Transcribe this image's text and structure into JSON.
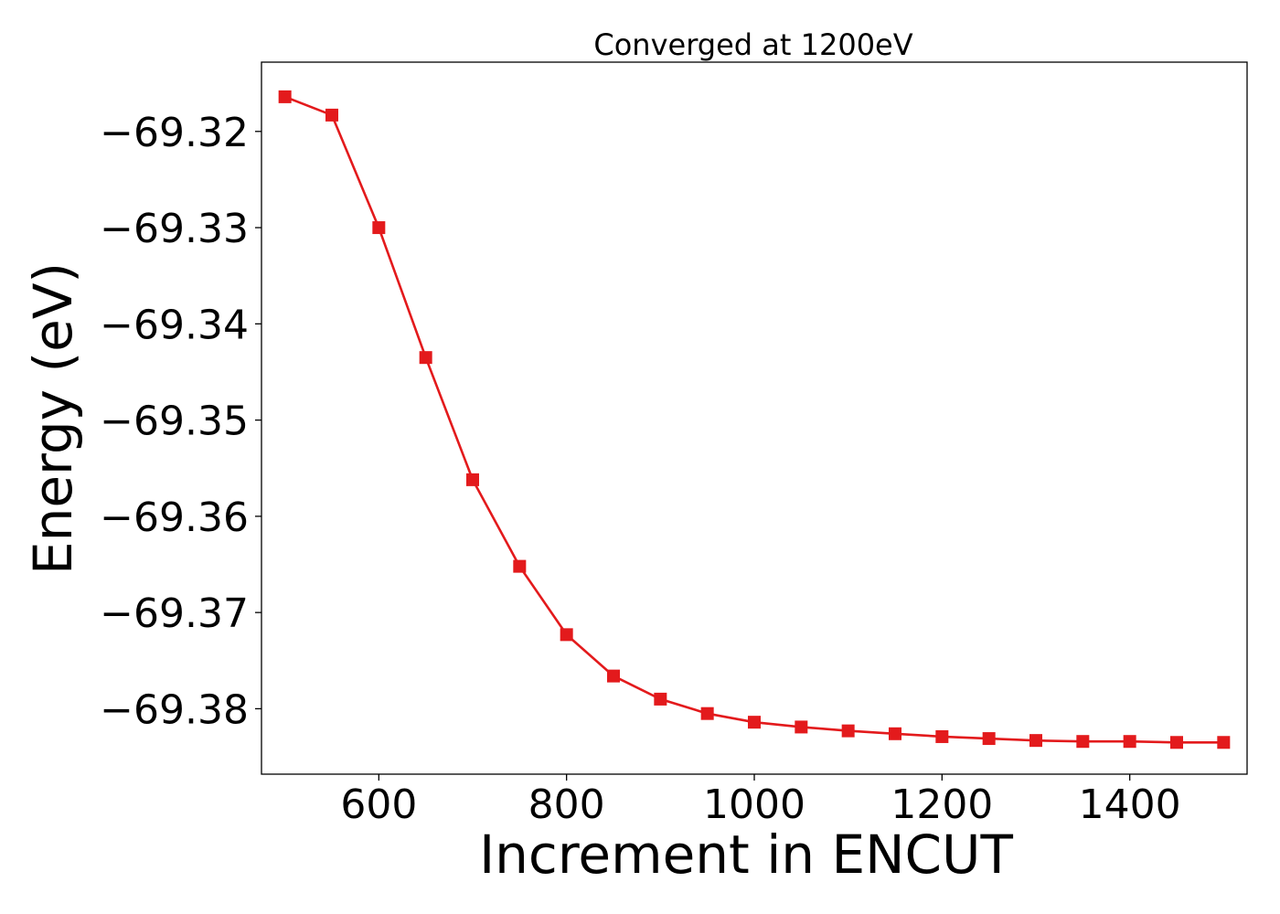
{
  "chart_data": {
    "type": "line",
    "title": "Converged at 1200eV",
    "xlabel": "Increment in ENCUT",
    "ylabel": "Energy (eV)",
    "xlim": [
      475,
      1525
    ],
    "ylim": [
      -69.3868,
      -69.3128
    ],
    "xticks": [
      600,
      800,
      1000,
      1200,
      1400
    ],
    "xtick_labels": [
      "600",
      "800",
      "1000",
      "1200",
      "1400"
    ],
    "yticks": [
      -69.32,
      -69.33,
      -69.34,
      -69.35,
      -69.36,
      -69.37,
      -69.38
    ],
    "ytick_labels": [
      "−69.32",
      "−69.33",
      "−69.34",
      "−69.35",
      "−69.36",
      "−69.37",
      "−69.38"
    ],
    "grid": false,
    "series": [
      {
        "color": "#e31a1c",
        "marker": "square",
        "x": [
          500,
          550,
          600,
          650,
          700,
          750,
          800,
          850,
          900,
          950,
          1000,
          1050,
          1100,
          1150,
          1200,
          1250,
          1300,
          1350,
          1400,
          1450,
          1500
        ],
        "y": [
          -69.3164,
          -69.3183,
          -69.33,
          -69.3435,
          -69.3562,
          -69.3652,
          -69.3723,
          -69.3766,
          -69.379,
          -69.3805,
          -69.3814,
          -69.3819,
          -69.3823,
          -69.3826,
          -69.3829,
          -69.3831,
          -69.3833,
          -69.3834,
          -69.3834,
          -69.3835,
          -69.3835
        ]
      }
    ]
  }
}
